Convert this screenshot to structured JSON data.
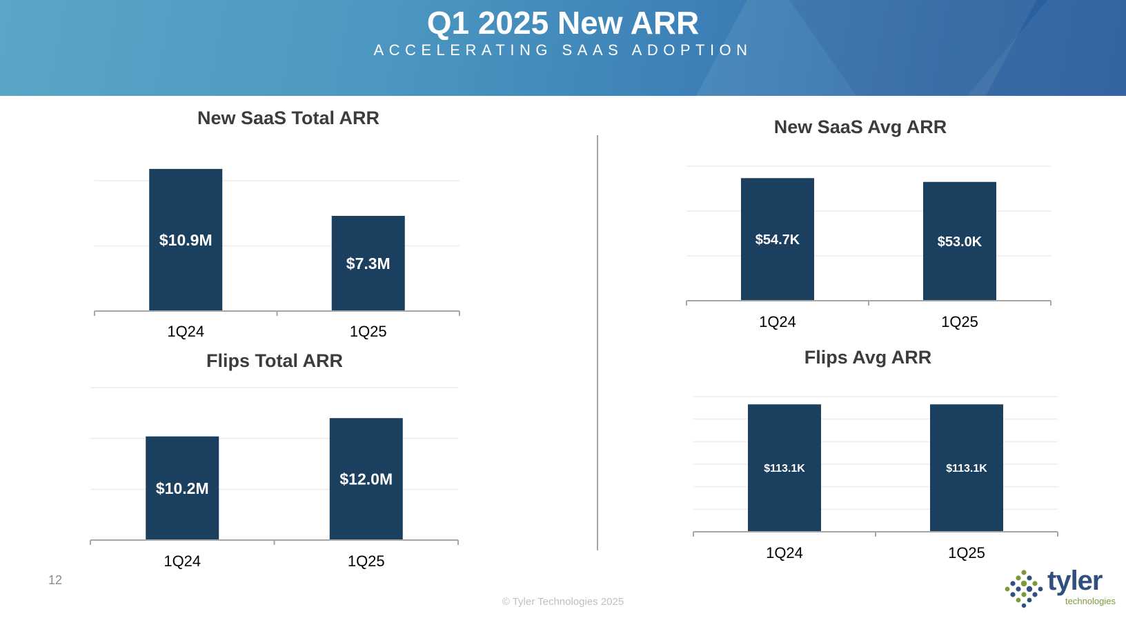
{
  "header": {
    "title": "Q1 2025 New ARR",
    "subtitle": "ACCELERATING SAAS ADOPTION"
  },
  "colors": {
    "bar": "#1b3f5e",
    "axis": "#a6a6a6",
    "grid": "#ececec",
    "banner_start": "#5aa6c6",
    "banner_end": "#2b62a4"
  },
  "chart_data": [
    {
      "id": "new-saas-total-arr",
      "type": "bar",
      "title": "New SaaS Total ARR",
      "categories": [
        "1Q24",
        "1Q25"
      ],
      "values": [
        10.9,
        7.3
      ],
      "data_labels": [
        "$10.9M",
        "$7.3M"
      ],
      "unit": "$M",
      "ylim": [
        0,
        11
      ],
      "gridlines": [
        5,
        10
      ],
      "grid": true
    },
    {
      "id": "new-saas-avg-arr",
      "type": "bar",
      "title": "New SaaS Avg ARR",
      "categories": [
        "1Q24",
        "1Q25"
      ],
      "values": [
        54.7,
        53.0
      ],
      "data_labels": [
        "$54.7K",
        "$53.0K"
      ],
      "unit": "$K",
      "ylim": [
        0,
        60
      ],
      "gridlines": [
        20,
        40,
        60
      ],
      "grid": true
    },
    {
      "id": "flips-total-arr",
      "type": "bar",
      "title": "Flips Total ARR",
      "categories": [
        "1Q24",
        "1Q25"
      ],
      "values": [
        10.2,
        12.0
      ],
      "data_labels": [
        "$10.2M",
        "$12.0M"
      ],
      "unit": "$M",
      "ylim": [
        0,
        15
      ],
      "gridlines": [
        5,
        10,
        15
      ],
      "grid": true
    },
    {
      "id": "flips-avg-arr",
      "type": "bar",
      "title": "Flips Avg ARR",
      "categories": [
        "1Q24",
        "1Q25"
      ],
      "values": [
        113.1,
        113.1
      ],
      "data_labels": [
        "$113.1K",
        "$113.1K"
      ],
      "unit": "$K",
      "ylim": [
        0,
        120
      ],
      "gridlines": [
        20,
        40,
        60,
        80,
        100,
        120
      ],
      "grid": true
    }
  ],
  "footer": {
    "page_number": "12",
    "copyright": "© Tyler Technologies 2025",
    "logo_word": "tyler",
    "logo_sub": "technologies"
  }
}
